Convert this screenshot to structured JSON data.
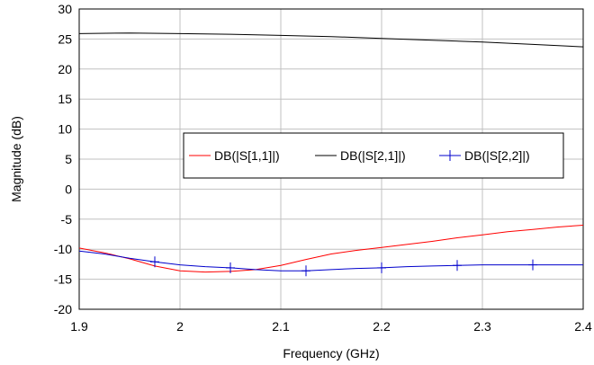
{
  "chart_data": {
    "type": "line",
    "xlabel": "Frequency (GHz)",
    "ylabel": "Magnitude (dB)",
    "xlim": [
      1.9,
      2.4
    ],
    "ylim": [
      -20,
      30
    ],
    "xticks": [
      "1.9",
      "2",
      "2.1",
      "2.2",
      "2.3",
      "2.4"
    ],
    "yticks": [
      "-20",
      "-15",
      "-10",
      "-5",
      "0",
      "5",
      "10",
      "15",
      "20",
      "25",
      "30"
    ],
    "grid": true,
    "legend_position": "center-right",
    "series": [
      {
        "name": "DB(|S[1,1]|)",
        "color": "#ff0000",
        "marker": "none",
        "x": [
          1.9,
          1.925,
          1.95,
          1.975,
          2.0,
          2.025,
          2.05,
          2.075,
          2.1,
          2.125,
          2.15,
          2.175,
          2.2,
          2.225,
          2.25,
          2.275,
          2.3,
          2.325,
          2.35,
          2.375,
          2.4
        ],
        "y": [
          -9.8,
          -10.6,
          -11.6,
          -12.8,
          -13.6,
          -13.8,
          -13.7,
          -13.4,
          -12.7,
          -11.7,
          -10.8,
          -10.2,
          -9.7,
          -9.2,
          -8.7,
          -8.1,
          -7.6,
          -7.1,
          -6.7,
          -6.3,
          -6.0
        ]
      },
      {
        "name": "DB(|S[2,1]|)",
        "color": "#000000",
        "marker": "none",
        "x": [
          1.9,
          1.95,
          2.0,
          2.05,
          2.1,
          2.15,
          2.2,
          2.25,
          2.3,
          2.35,
          2.4
        ],
        "y": [
          25.9,
          26.0,
          25.9,
          25.8,
          25.6,
          25.4,
          25.1,
          24.8,
          24.5,
          24.1,
          23.7
        ]
      },
      {
        "name": "DB(|S[2,2]|)",
        "color": "#0000cc",
        "marker": "plus",
        "x": [
          1.9,
          1.925,
          1.95,
          1.975,
          2.0,
          2.025,
          2.05,
          2.075,
          2.1,
          2.125,
          2.15,
          2.175,
          2.2,
          2.225,
          2.25,
          2.275,
          2.3,
          2.325,
          2.35,
          2.375,
          2.4
        ],
        "y": [
          -10.3,
          -10.8,
          -11.5,
          -12.1,
          -12.6,
          -12.9,
          -13.1,
          -13.4,
          -13.6,
          -13.6,
          -13.4,
          -13.2,
          -13.1,
          -12.9,
          -12.8,
          -12.7,
          -12.6,
          -12.6,
          -12.6,
          -12.6,
          -12.6
        ],
        "marker_x": [
          1.975,
          2.05,
          2.125,
          2.2,
          2.275,
          2.35
        ],
        "marker_y": [
          -12.1,
          -13.1,
          -13.6,
          -13.1,
          -12.7,
          -12.6
        ]
      }
    ]
  }
}
